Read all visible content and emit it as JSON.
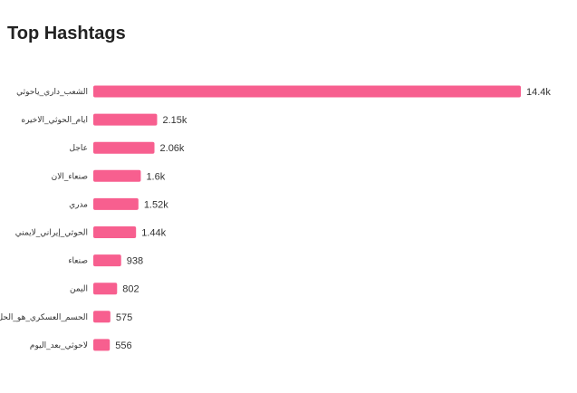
{
  "chart_data": {
    "type": "bar",
    "orientation": "horizontal",
    "title": "Top Hashtags",
    "categories": [
      "الشعب_داري_ياحوثي",
      "ايام_الحوثي_الاخيره",
      "عاجل",
      "صنعاء_الان",
      "مدري",
      "الحوثي_إيراني_لايمني",
      "صنعاء",
      "اليمن",
      "الحسم_العسكري_هو_الحل",
      "لاحوثي_بعد_اليوم"
    ],
    "values": [
      14400,
      2150,
      2060,
      1600,
      1520,
      1440,
      938,
      802,
      575,
      556
    ],
    "value_labels": [
      "14.4k",
      "2.15k",
      "2.06k",
      "1.6k",
      "1.52k",
      "1.44k",
      "938",
      "802",
      "575",
      "556"
    ],
    "bar_color": "#f75f8f",
    "grid": false,
    "legend": "none"
  }
}
